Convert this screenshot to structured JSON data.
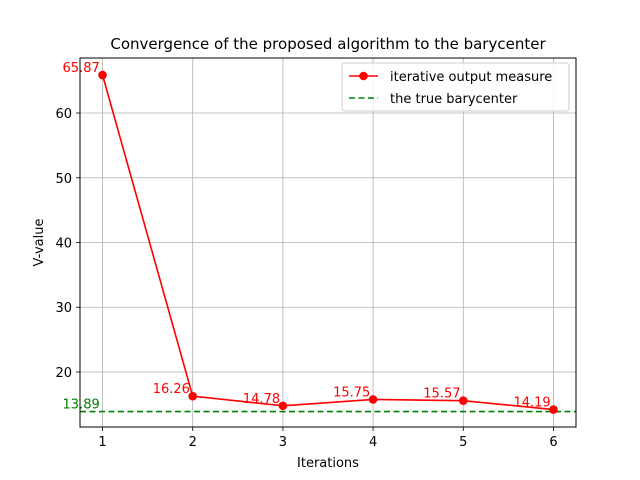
{
  "chart_data": {
    "type": "line",
    "title": "Convergence of the proposed algorithm to the barycenter",
    "xlabel": "Iterations",
    "ylabel": "V-value",
    "x": [
      1,
      2,
      3,
      4,
      5,
      6
    ],
    "xlim": [
      0.75,
      6.25
    ],
    "ylim": [
      11.5,
      68.5
    ],
    "x_ticks": [
      "1",
      "2",
      "3",
      "4",
      "5",
      "6"
    ],
    "y_ticks": [
      "20",
      "30",
      "40",
      "50",
      "60"
    ],
    "grid": true,
    "legend_position": "top-right",
    "series": [
      {
        "name": "iterative output measure",
        "color": "#ff0000",
        "marker": "circle",
        "values": [
          65.87,
          16.26,
          14.78,
          15.75,
          15.57,
          14.19
        ],
        "labels": [
          "65.87",
          "16.26",
          "14.78",
          "15.75",
          "15.57",
          "14.19"
        ]
      }
    ],
    "reference_line": {
      "name": "the true barycenter",
      "color": "#008000",
      "style": "dashed",
      "value": 13.89,
      "label": "13.89"
    }
  }
}
